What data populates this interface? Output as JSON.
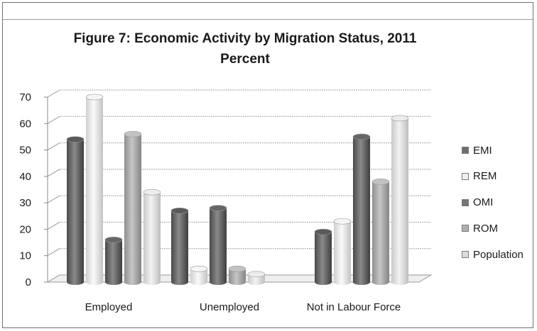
{
  "chart_data": {
    "type": "bar",
    "title": "Figure 7: Economic Activity by Migration Status, 2011",
    "subtitle": "Percent",
    "xlabel": "",
    "ylabel": "",
    "ylim": [
      0,
      70
    ],
    "yticks": [
      0,
      10,
      20,
      30,
      40,
      50,
      60,
      70
    ],
    "categories": [
      "Employed",
      "Unemployed",
      "Not in Labour Force"
    ],
    "series": [
      {
        "name": "EMI",
        "values": [
          54,
          27,
          19
        ],
        "color": "#6e6e6e"
      },
      {
        "name": "REM",
        "values": [
          70,
          5,
          23
        ],
        "color": "#e4e4e4"
      },
      {
        "name": "OMI",
        "values": [
          16,
          28,
          55
        ],
        "color": "#777777"
      },
      {
        "name": "ROM",
        "values": [
          56,
          5,
          38
        ],
        "color": "#a9a9a9"
      },
      {
        "name": "Population",
        "values": [
          34,
          3,
          62
        ],
        "color": "#d9d9d9"
      }
    ],
    "grid": true,
    "legend_position": "right"
  }
}
